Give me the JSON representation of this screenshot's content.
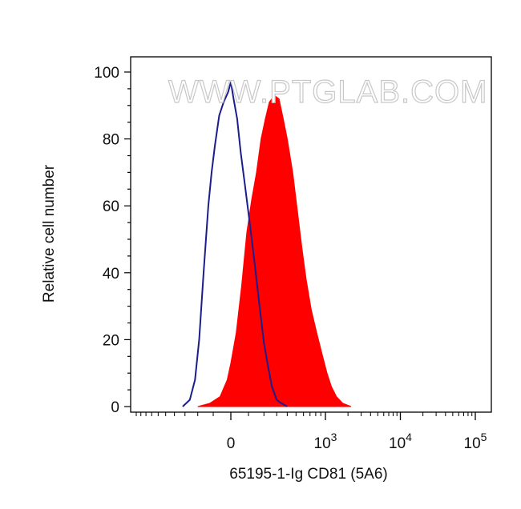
{
  "watermark": "WWW.PTGLAB.COM",
  "colors": {
    "sample_fill": "#ff0000",
    "control_line": "#1c1c8c",
    "axis": "#000000",
    "watermark_stroke": "#c8c8c8"
  },
  "chart_data": {
    "type": "area",
    "title": "",
    "xlabel": "65195-1-Ig CD81 (5A6)",
    "ylabel": "Relative cell number",
    "xscale": "biexponential",
    "ylim": [
      0,
      100
    ],
    "yticks": [
      0,
      20,
      40,
      60,
      80,
      100
    ],
    "xticks": [
      {
        "value": 0,
        "base": "0",
        "exp": ""
      },
      {
        "value": 1000,
        "base": "10",
        "exp": "3"
      },
      {
        "value": 10000,
        "base": "10",
        "exp": "4"
      },
      {
        "value": 100000,
        "base": "10",
        "exp": "5"
      }
    ],
    "grid": false,
    "legend": "none",
    "series": [
      {
        "role": "sample",
        "style": "filled",
        "color": "#ff0000",
        "points": [
          [
            -200,
            0
          ],
          [
            -120,
            1
          ],
          [
            -60,
            3
          ],
          [
            -20,
            8
          ],
          [
            0,
            13
          ],
          [
            30,
            22
          ],
          [
            60,
            36
          ],
          [
            90,
            52
          ],
          [
            120,
            62
          ],
          [
            150,
            70
          ],
          [
            180,
            80
          ],
          [
            210,
            86
          ],
          [
            240,
            91
          ],
          [
            280,
            93
          ],
          [
            320,
            92
          ],
          [
            360,
            86
          ],
          [
            400,
            80
          ],
          [
            460,
            70
          ],
          [
            520,
            58
          ],
          [
            580,
            47
          ],
          [
            640,
            38
          ],
          [
            720,
            29
          ],
          [
            820,
            22
          ],
          [
            920,
            16
          ],
          [
            1050,
            10
          ],
          [
            1200,
            6
          ],
          [
            1400,
            3
          ],
          [
            1700,
            1
          ],
          [
            2200,
            0
          ]
        ]
      },
      {
        "role": "control",
        "style": "line",
        "color": "#1c1c8c",
        "points": [
          [
            -320,
            0
          ],
          [
            -260,
            2
          ],
          [
            -220,
            8
          ],
          [
            -190,
            20
          ],
          [
            -160,
            40
          ],
          [
            -130,
            60
          ],
          [
            -110,
            70
          ],
          [
            -90,
            78
          ],
          [
            -65,
            87
          ],
          [
            -40,
            91
          ],
          [
            -15,
            94
          ],
          [
            0,
            97
          ],
          [
            15,
            92
          ],
          [
            35,
            86
          ],
          [
            55,
            76
          ],
          [
            80,
            66
          ],
          [
            110,
            54
          ],
          [
            140,
            42
          ],
          [
            170,
            30
          ],
          [
            200,
            19
          ],
          [
            230,
            12
          ],
          [
            260,
            6
          ],
          [
            300,
            2
          ],
          [
            340,
            1
          ],
          [
            400,
            0
          ]
        ]
      }
    ]
  }
}
